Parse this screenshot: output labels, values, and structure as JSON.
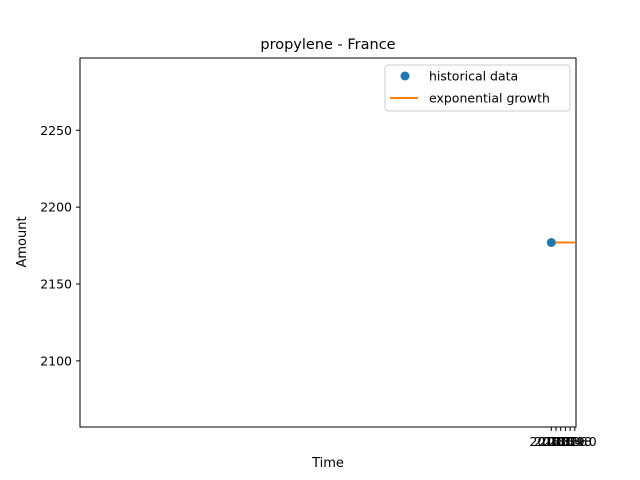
{
  "chart_data": {
    "type": "line",
    "title": "propylene - France",
    "xlabel": "Time",
    "ylabel": "Amount",
    "xlim": [
      1997.95,
      2019.05
    ],
    "ylim": [
      2057,
      2297
    ],
    "xticks": [
      2018.0,
      2018.2,
      2018.4,
      2018.6,
      2018.8,
      2019.0
    ],
    "xtick_labels": [
      "2018.0",
      "2018.2",
      "2018.4",
      "2018.6",
      "2018.8",
      "2019.0"
    ],
    "yticks": [
      2100,
      2150,
      2200,
      2250
    ],
    "ytick_labels": [
      "2100",
      "2150",
      "2200",
      "2250"
    ],
    "grid": false,
    "legend_position": "top-right",
    "series": [
      {
        "name": "historical data",
        "style": "markers",
        "color": "#1f77b4",
        "x": [
          2018.0
        ],
        "y": [
          2177
        ]
      },
      {
        "name": "exponential growth",
        "style": "line",
        "color": "#ff7f0e",
        "x": [
          2018.0,
          2019.0
        ],
        "y": [
          2177,
          2177
        ]
      }
    ]
  }
}
